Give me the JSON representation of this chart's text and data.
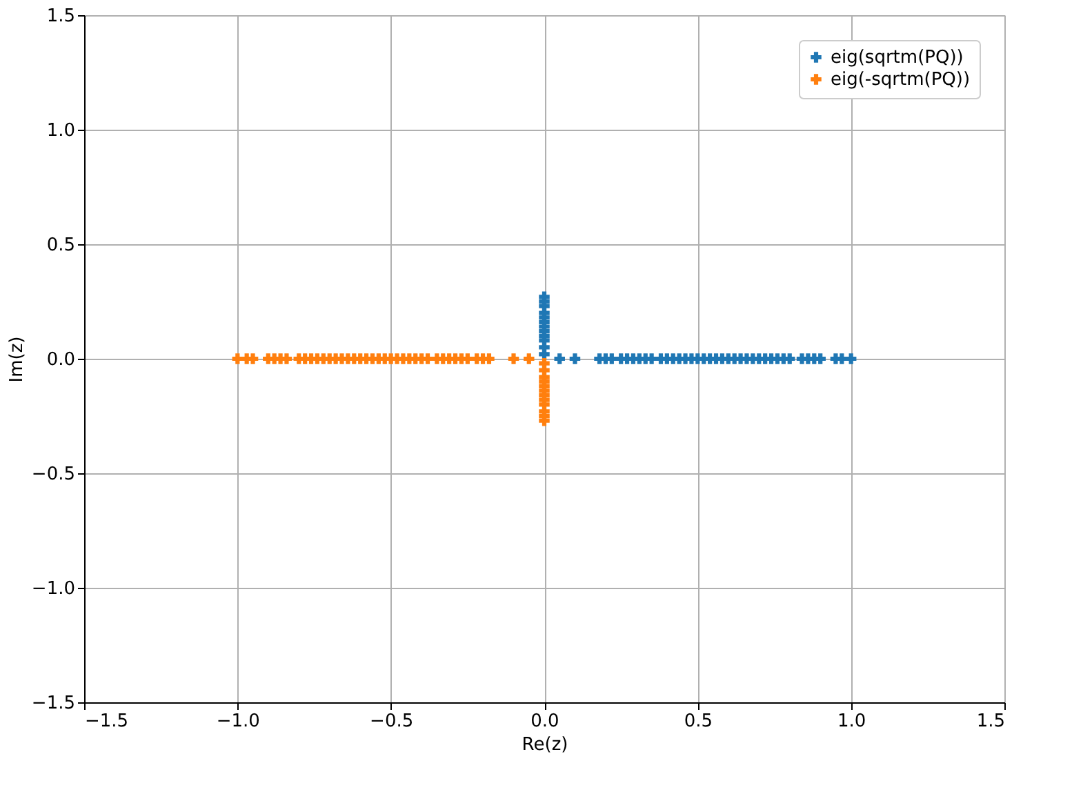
{
  "chart_data": {
    "type": "scatter",
    "xlabel": "Re(z)",
    "ylabel": "Im(z)",
    "xlim": [
      -1.5,
      1.5
    ],
    "ylim": [
      -1.5,
      1.5
    ],
    "xticks": [
      {
        "value": -1.5,
        "label": "−1.5"
      },
      {
        "value": -1,
        "label": "−1.0"
      },
      {
        "value": -0.5,
        "label": "−0.5"
      },
      {
        "value": 0,
        "label": "0.0"
      },
      {
        "value": 0.5,
        "label": "0.5"
      },
      {
        "value": 1,
        "label": "1.0"
      },
      {
        "value": 1.5,
        "label": "1.5"
      }
    ],
    "yticks": [
      {
        "value": -1.5,
        "label": "−1.5"
      },
      {
        "value": -1,
        "label": "−1.0"
      },
      {
        "value": -0.5,
        "label": "−0.5"
      },
      {
        "value": 0,
        "label": "0.0"
      },
      {
        "value": 0.5,
        "label": "0.5"
      },
      {
        "value": 1,
        "label": "1.0"
      },
      {
        "value": 1.5,
        "label": "1.5"
      }
    ],
    "grid": true,
    "legend": "top right",
    "marker": "cross",
    "series": [
      {
        "name": "eig(sqrtm(PQ))",
        "color": "#1f77b4",
        "x": [
          0.05,
          0.1,
          0.18,
          0.2,
          0.22,
          0.25,
          0.27,
          0.29,
          0.31,
          0.33,
          0.35,
          0.38,
          0.4,
          0.42,
          0.44,
          0.46,
          0.48,
          0.5,
          0.52,
          0.54,
          0.56,
          0.58,
          0.6,
          0.62,
          0.64,
          0.66,
          0.68,
          0.7,
          0.72,
          0.74,
          0.76,
          0.78,
          0.8,
          0.84,
          0.86,
          0.88,
          0.9,
          0.95,
          0.97,
          1.0,
          0,
          0,
          0,
          0,
          0,
          0,
          0,
          0,
          0,
          0,
          0,
          0
        ],
        "values": [
          0,
          0,
          0,
          0,
          0,
          0,
          0,
          0,
          0,
          0,
          0,
          0,
          0,
          0,
          0,
          0,
          0,
          0,
          0,
          0,
          0,
          0,
          0,
          0,
          0,
          0,
          0,
          0,
          0,
          0,
          0,
          0,
          0,
          0,
          0,
          0,
          0,
          0,
          0,
          0,
          0.02,
          0.05,
          0.08,
          0.1,
          0.12,
          0.14,
          0.16,
          0.18,
          0.2,
          0.23,
          0.25,
          0.27
        ]
      },
      {
        "name": "eig(-sqrtm(PQ))",
        "color": "#ff7f0e",
        "x": [
          -0.05,
          -0.1,
          -0.18,
          -0.2,
          -0.22,
          -0.25,
          -0.27,
          -0.29,
          -0.31,
          -0.33,
          -0.35,
          -0.38,
          -0.4,
          -0.42,
          -0.44,
          -0.46,
          -0.48,
          -0.5,
          -0.52,
          -0.54,
          -0.56,
          -0.58,
          -0.6,
          -0.62,
          -0.64,
          -0.66,
          -0.68,
          -0.7,
          -0.72,
          -0.74,
          -0.76,
          -0.78,
          -0.8,
          -0.84,
          -0.86,
          -0.88,
          -0.9,
          -0.95,
          -0.97,
          -1.0,
          0,
          0,
          0,
          0,
          0,
          0,
          0,
          0,
          0,
          0,
          0,
          0
        ],
        "values": [
          0,
          0,
          0,
          0,
          0,
          0,
          0,
          0,
          0,
          0,
          0,
          0,
          0,
          0,
          0,
          0,
          0,
          0,
          0,
          0,
          0,
          0,
          0,
          0,
          0,
          0,
          0,
          0,
          0,
          0,
          0,
          0,
          0,
          0,
          0,
          0,
          0,
          0,
          0,
          0,
          -0.02,
          -0.05,
          -0.08,
          -0.1,
          -0.12,
          -0.14,
          -0.16,
          -0.18,
          -0.2,
          -0.23,
          -0.25,
          -0.27
        ]
      }
    ]
  }
}
